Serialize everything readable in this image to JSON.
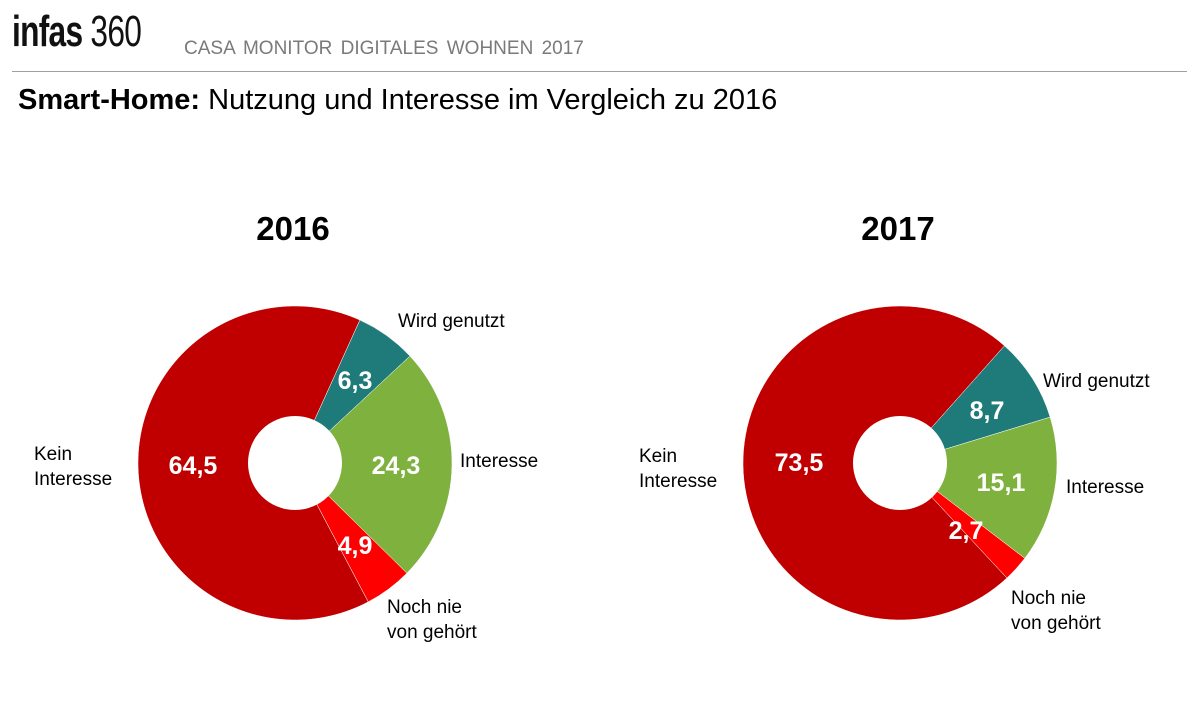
{
  "header": {
    "logo_bold": "infas",
    "logo_light": "360",
    "subtitle": "CASA MONITOR DIGITALES WOHNEN 2017"
  },
  "title": {
    "bold": "Smart-Home:",
    "rest": " Nutzung und Interesse im Vergleich zu 2016"
  },
  "colors": {
    "Wird genutzt": "#1F7A7A",
    "Interesse": "#7FB13F",
    "Noch nie von gehört": "#FF0000",
    "Kein Interesse": "#C00000"
  },
  "chart_data": [
    {
      "type": "pie",
      "title": "2016",
      "categories": [
        "Wird genutzt",
        "Interesse",
        "Noch nie von gehört",
        "Kein Interesse"
      ],
      "values": [
        6.3,
        24.3,
        4.9,
        64.5
      ],
      "value_labels": [
        "6,3",
        "24,3",
        "4,9",
        "64,5"
      ],
      "legend_labels": [
        [
          "Wird genutzt"
        ],
        [
          "Interesse"
        ],
        [
          "Noch nie",
          "von gehört"
        ],
        [
          "Kein",
          "Interesse"
        ]
      ]
    },
    {
      "type": "pie",
      "title": "2017",
      "categories": [
        "Wird genutzt",
        "Interesse",
        "Noch nie von gehört",
        "Kein Interesse"
      ],
      "values": [
        8.7,
        15.1,
        2.7,
        73.5
      ],
      "value_labels": [
        "8,7",
        "15,1",
        "2,7",
        "73,5"
      ],
      "legend_labels": [
        [
          "Wird genutzt"
        ],
        [
          "Interesse"
        ],
        [
          "Noch nie",
          "von gehört"
        ],
        [
          "Kein",
          "Interesse"
        ]
      ]
    }
  ]
}
